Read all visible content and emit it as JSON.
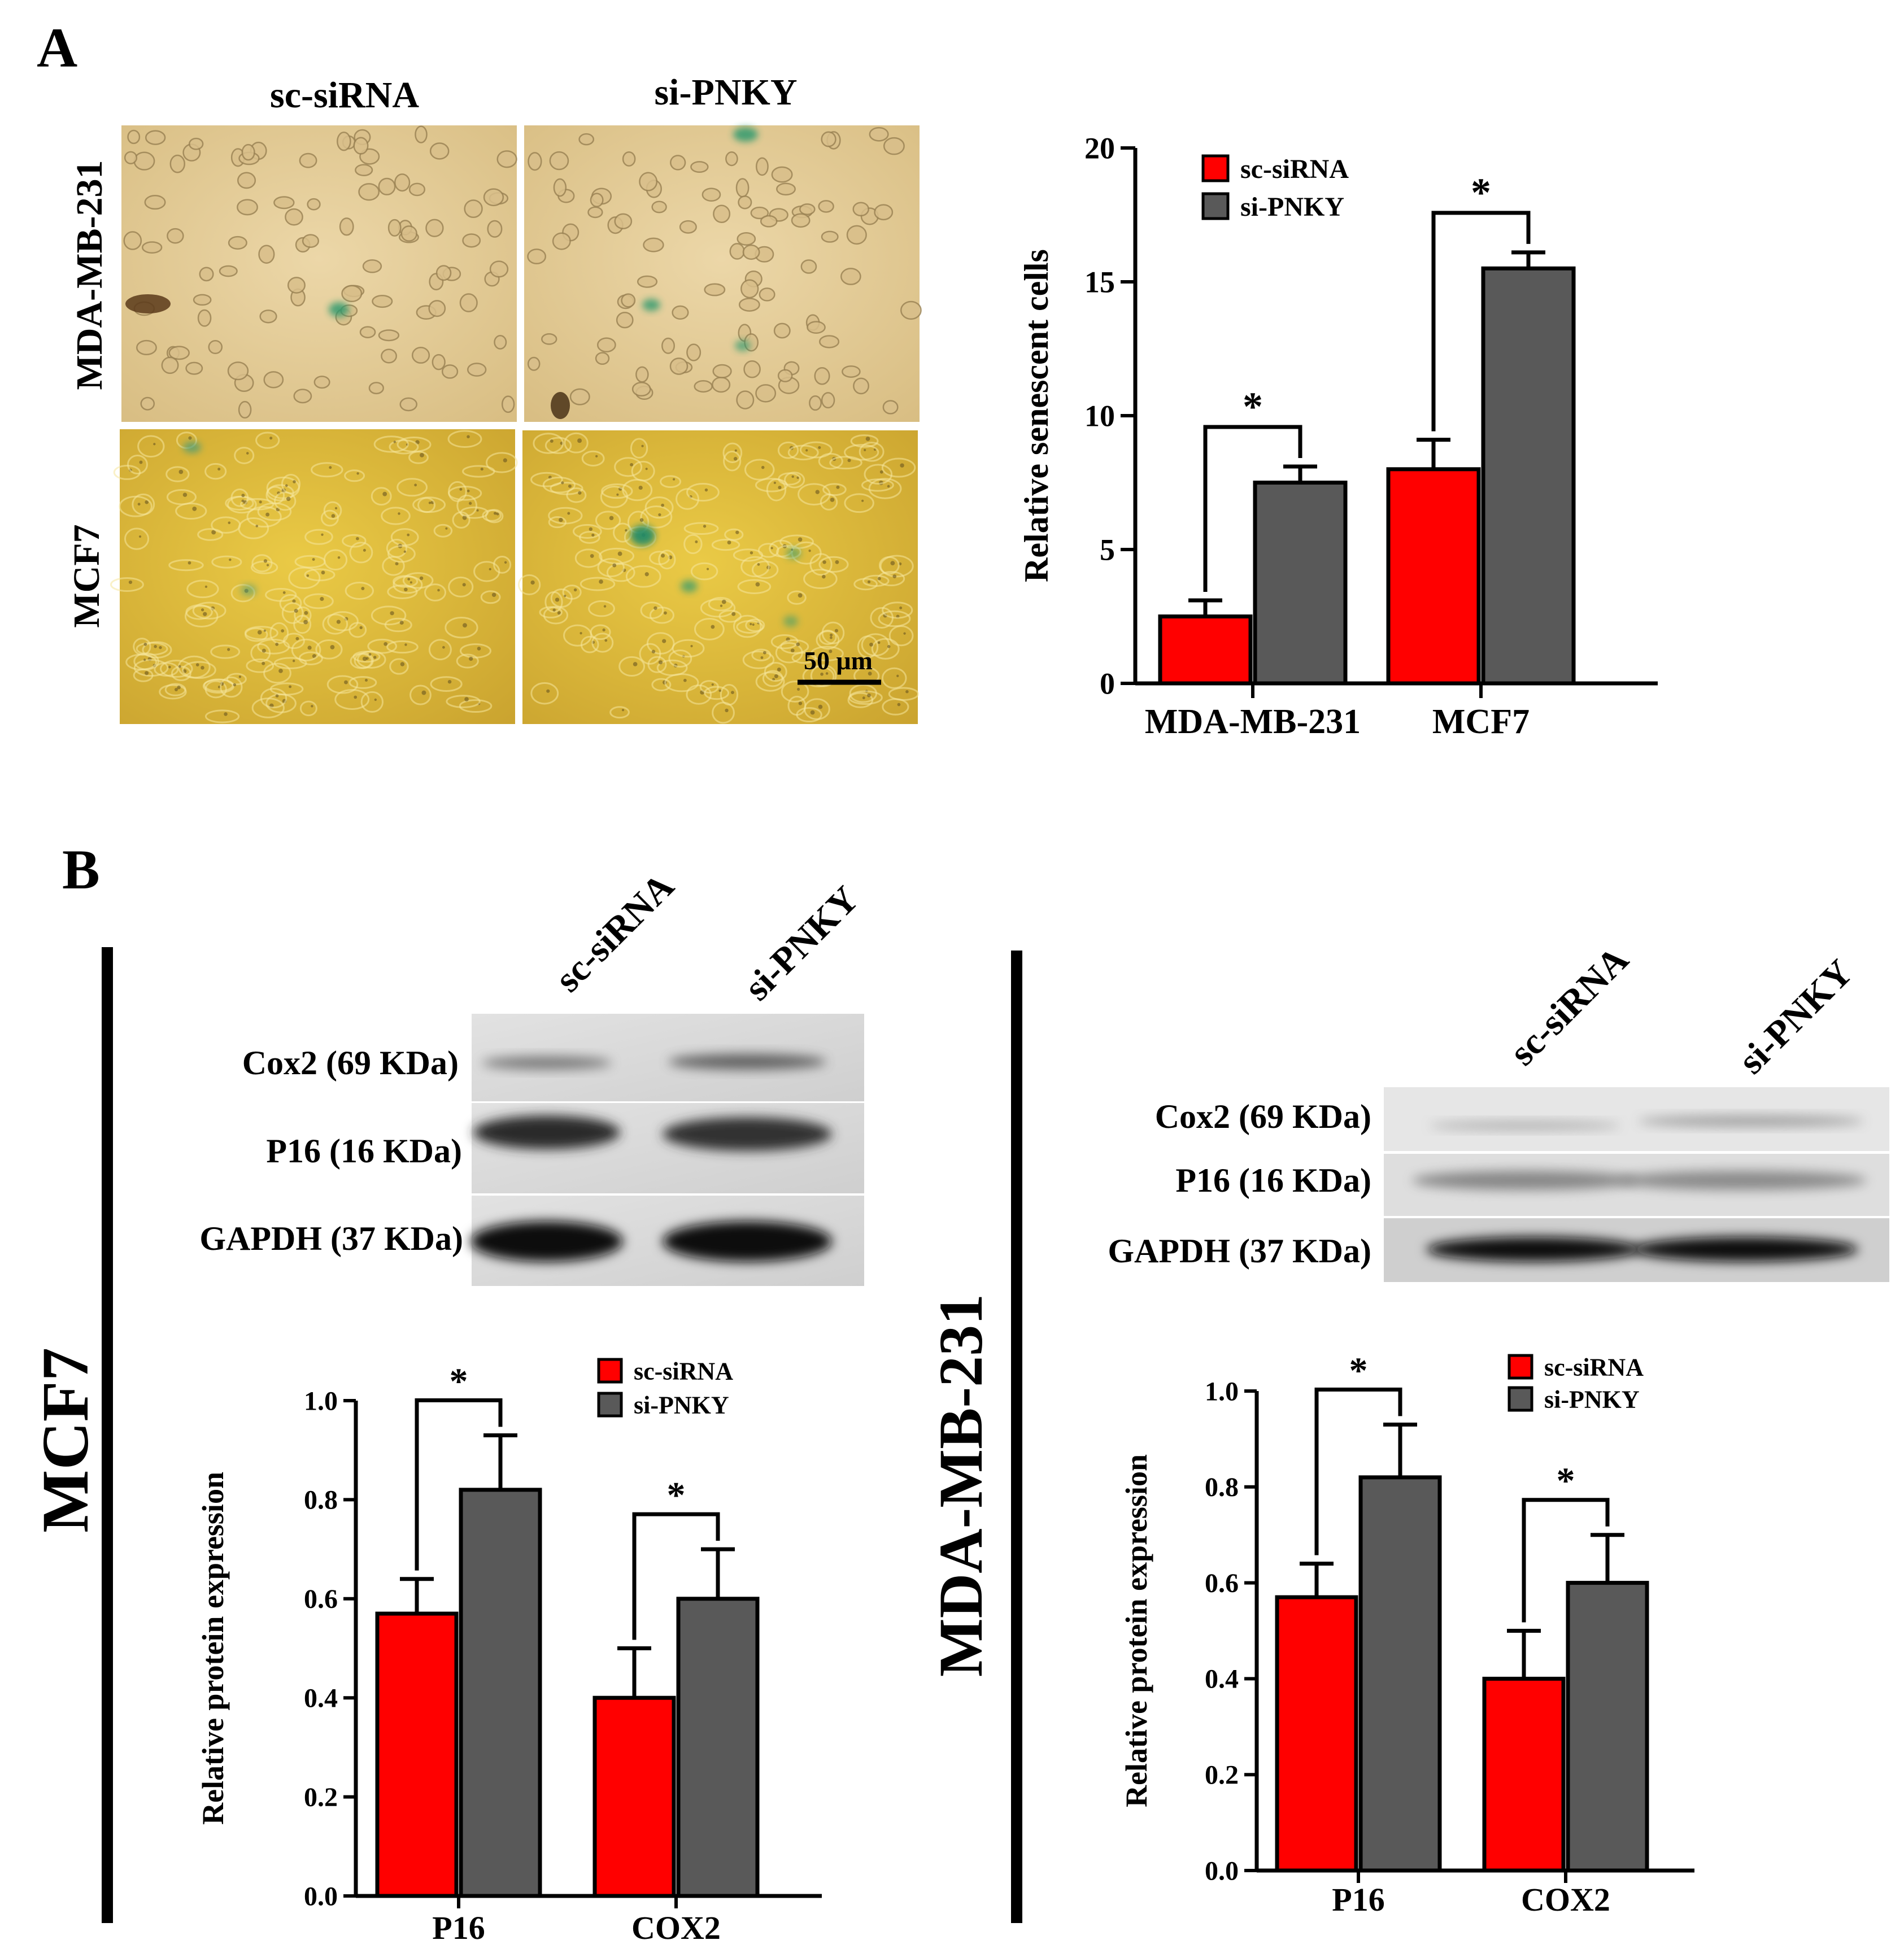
{
  "panel_a": {
    "label": "A",
    "micrograph": {
      "column_labels": [
        "sc-siRNA",
        "si-PNKY"
      ],
      "row_labels": [
        "MDA-MB-231",
        "MCF7"
      ],
      "scale_bar": "50 μm"
    }
  },
  "panel_b": {
    "label": "B",
    "mcf7": {
      "side_label": "MCF7",
      "blot": {
        "lanes": [
          "sc-siRNA",
          "si-PNKY"
        ],
        "rows": [
          "Cox2 (69 KDa)",
          "P16 (16 KDa)",
          "GAPDH (37 KDa)"
        ]
      }
    },
    "mda": {
      "side_label": "MDA-MB-231",
      "blot": {
        "lanes": [
          "sc-siRNA",
          "si-PNKY"
        ],
        "rows": [
          "Cox2 (69 KDa)",
          "P16 (16 KDa)",
          "GAPDH (37 KDa)"
        ]
      }
    }
  },
  "colors": {
    "sc_siRNA": "#ff0000",
    "si_PNKY": "#595959"
  },
  "chart_data": [
    {
      "type": "bar",
      "categories": [
        "MDA-MB-231",
        "MCF7"
      ],
      "series": [
        {
          "name": "sc-siRNA",
          "values": [
            2.5,
            8.0
          ],
          "errors": [
            0.6,
            1.1
          ]
        },
        {
          "name": "si-PNKY",
          "values": [
            7.5,
            15.5
          ],
          "errors": [
            0.6,
            0.6
          ]
        }
      ],
      "ylabel": "Relative senescent cells",
      "ylim": [
        0,
        20
      ],
      "yticks": [
        "0",
        "5",
        "10",
        "15",
        "20"
      ],
      "significance": [
        "*",
        "*"
      ],
      "legend": "top-left"
    },
    {
      "type": "bar",
      "categories": [
        "P16",
        "COX2"
      ],
      "series": [
        {
          "name": "sc-siRNA",
          "values": [
            0.57,
            0.4
          ],
          "errors": [
            0.07,
            0.1
          ]
        },
        {
          "name": "si-PNKY",
          "values": [
            0.82,
            0.6
          ],
          "errors": [
            0.11,
            0.1
          ]
        }
      ],
      "ylabel": "Relative protein expression",
      "ylim": [
        0,
        1
      ],
      "yticks": [
        "0.0",
        "0.2",
        "0.4",
        "0.6",
        "0.8",
        "1.0"
      ],
      "significance": [
        "*",
        "*"
      ],
      "legend": "top-right"
    },
    {
      "type": "bar",
      "categories": [
        "P16",
        "COX2"
      ],
      "series": [
        {
          "name": "sc-siRNA",
          "values": [
            0.57,
            0.4
          ],
          "errors": [
            0.07,
            0.1
          ]
        },
        {
          "name": "si-PNKY",
          "values": [
            0.82,
            0.6
          ],
          "errors": [
            0.11,
            0.1
          ]
        }
      ],
      "ylabel": "Relative protein expression",
      "ylim": [
        0,
        1
      ],
      "yticks": [
        "0.0",
        "0.2",
        "0.4",
        "0.6",
        "0.8",
        "1.0"
      ],
      "significance": [
        "*",
        "*"
      ],
      "legend": "top-right"
    }
  ]
}
